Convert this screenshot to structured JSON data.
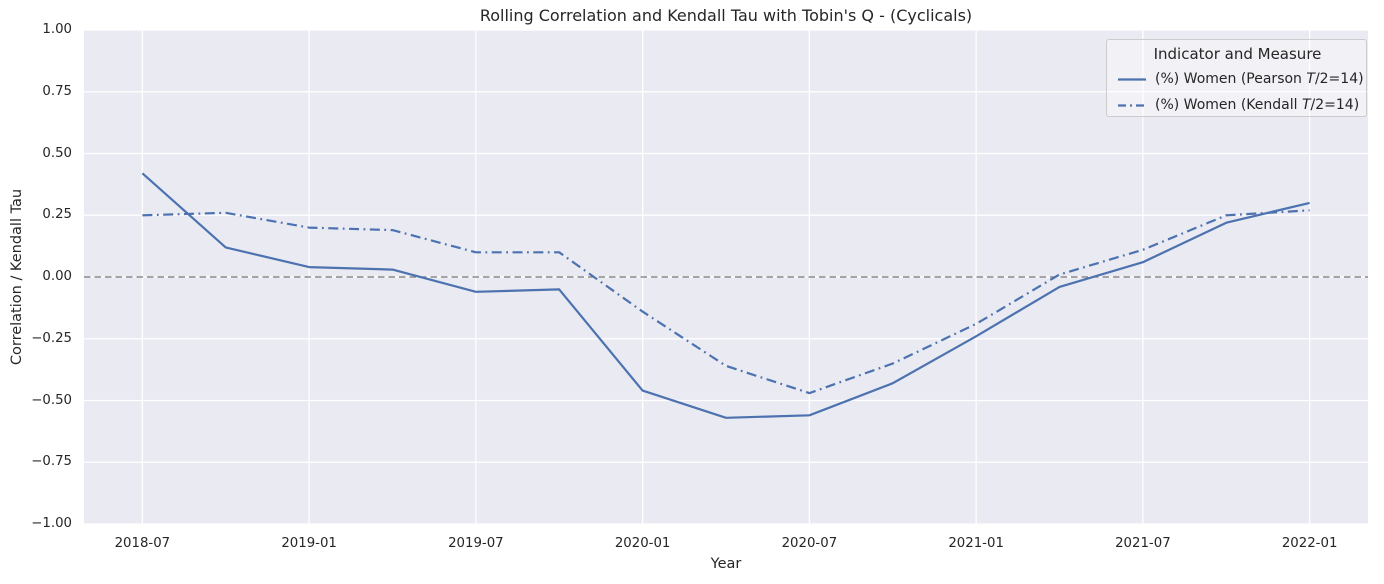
{
  "title": "Rolling Correlation and Kendall Tau with Tobin's Q - (Cyclicals)",
  "axes": {
    "x_label": "Year",
    "y_label": "Correlation / Kendall Tau",
    "x_ticks": [
      "2018-07",
      "2019-01",
      "2019-07",
      "2020-01",
      "2020-07",
      "2021-01",
      "2021-07",
      "2022-01"
    ],
    "y_ticks": [
      "1.00",
      "0.75",
      "0.50",
      "0.25",
      "0.00",
      "−0.25",
      "−0.50",
      "−0.75",
      "−1.00"
    ]
  },
  "legend": {
    "title": "Indicator and Measure",
    "items": [
      {
        "pre": "(%) Women (Pearson ",
        "math": "T",
        "post": "/2=14)",
        "style": "solid"
      },
      {
        "pre": "(%) Women (Kendall ",
        "math": "T",
        "post": "/2=14)",
        "style": "dashdot"
      }
    ]
  },
  "colors": {
    "line": "#4C72B0",
    "plot_bg": "#EAEAF2",
    "grid": "#FFFFFF",
    "zero_line": "#777777",
    "text": "#262626",
    "legend_border": "#CCCCCC"
  },
  "chart_data": {
    "type": "line",
    "title": "Rolling Correlation and Kendall Tau with Tobin's Q - (Cyclicals)",
    "xlabel": "Year",
    "ylabel": "Correlation / Kendall Tau",
    "x": [
      "2018-07",
      "2018-10",
      "2019-01",
      "2019-04",
      "2019-07",
      "2019-10",
      "2020-01",
      "2020-04",
      "2020-07",
      "2020-10",
      "2021-01",
      "2021-04",
      "2021-07",
      "2021-10",
      "2022-01"
    ],
    "series": [
      {
        "name": "(%) Women (Pearson T/2=14)",
        "style": "solid",
        "values": [
          0.42,
          0.12,
          0.04,
          0.03,
          -0.06,
          -0.05,
          -0.46,
          -0.57,
          -0.56,
          -0.43,
          -0.24,
          -0.04,
          0.06,
          0.22,
          0.3
        ]
      },
      {
        "name": "(%) Women (Kendall T/2=14)",
        "style": "dashdot",
        "values": [
          0.25,
          0.26,
          0.2,
          0.19,
          0.1,
          0.1,
          -0.14,
          -0.36,
          -0.47,
          -0.35,
          -0.19,
          0.01,
          0.11,
          0.25,
          0.27
        ]
      }
    ],
    "ylim": [
      -1.0,
      1.0
    ],
    "y_tick_step": 0.25,
    "x_margin_fraction": 0.05,
    "grid": true,
    "zero_reference_line": true,
    "legend_position": "upper right"
  }
}
